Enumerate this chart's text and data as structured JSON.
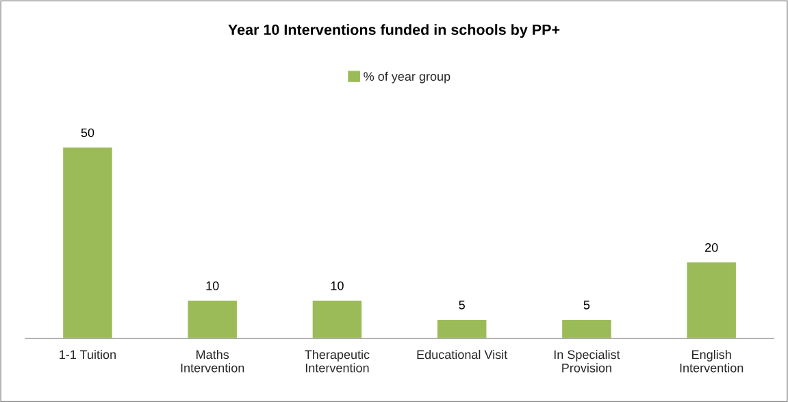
{
  "chart_data": {
    "type": "bar",
    "title": "Year 10 Interventions funded in schools by PP+",
    "categories": [
      "1-1 Tuition",
      "Maths Intervention",
      "Therapeutic Intervention",
      "Educational Visit",
      "In Specialist Provision",
      "English Intervention"
    ],
    "series": [
      {
        "name": "% of year group",
        "color": "#9bbb59",
        "values": [
          50,
          10,
          10,
          5,
          5,
          20
        ]
      }
    ],
    "data_labels": true,
    "legend": "top",
    "grid": false
  }
}
